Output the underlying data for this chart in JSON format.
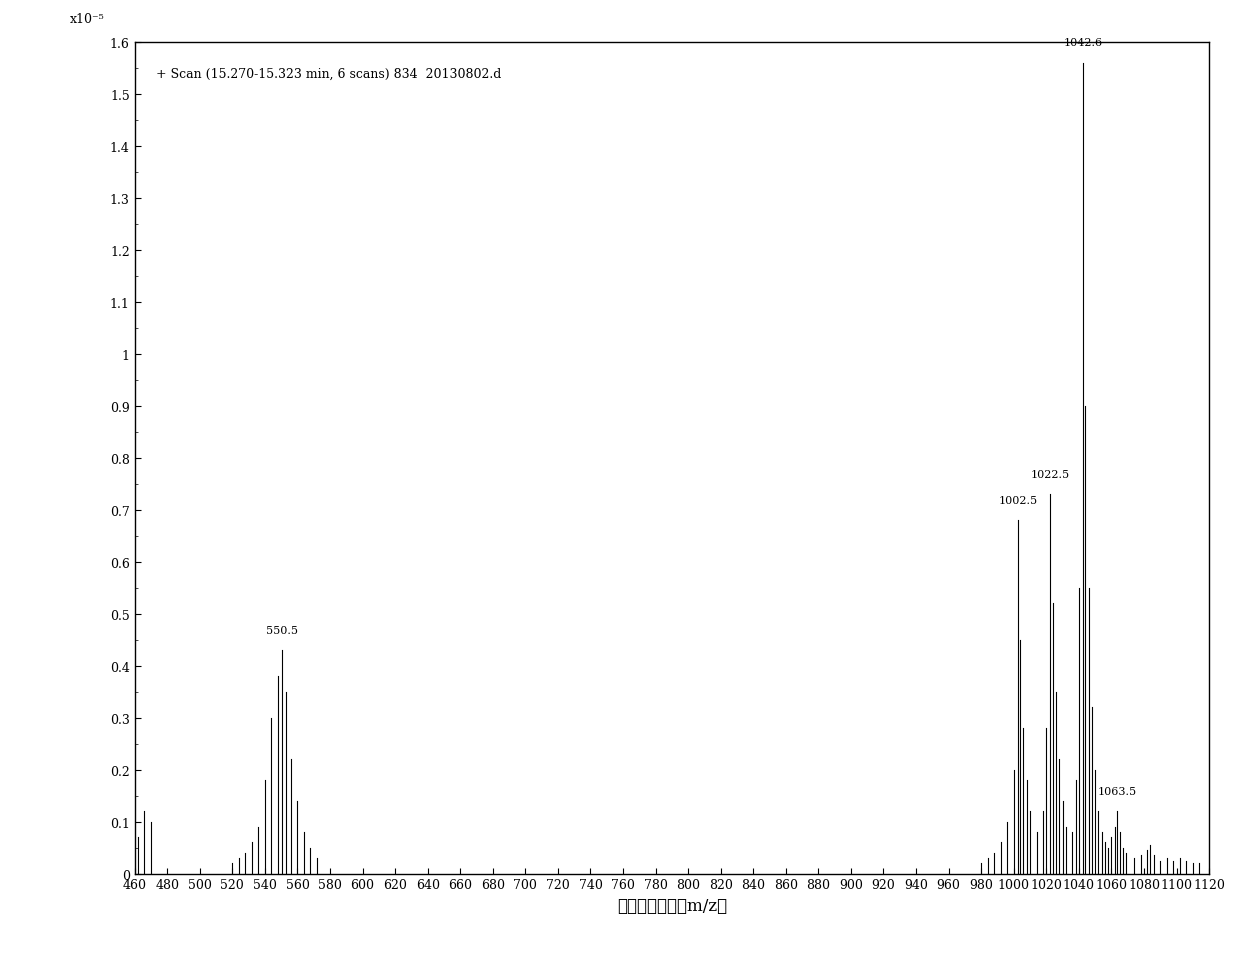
{
  "title_annotation": "+ Scan (15.270-15.323 min, 6 scans) 834  20130802.d",
  "xlabel": "计数和质荷比（m/z）",
  "ylabel_exponent": "x10⁻⁵",
  "xmin": 460,
  "xmax": 1120,
  "ymin": 0,
  "ymax": 1.6,
  "yticks": [
    0,
    0.1,
    0.2,
    0.3,
    0.4,
    0.5,
    0.6,
    0.7,
    0.8,
    0.9,
    1.0,
    1.1,
    1.2,
    1.3,
    1.4,
    1.5,
    1.6
  ],
  "xticks": [
    460,
    480,
    500,
    520,
    540,
    560,
    580,
    600,
    620,
    640,
    660,
    680,
    700,
    720,
    740,
    760,
    780,
    800,
    820,
    840,
    860,
    880,
    900,
    920,
    940,
    960,
    980,
    1000,
    1020,
    1040,
    1060,
    1080,
    1100,
    1120
  ],
  "peaks": [
    {
      "mz": 462,
      "intensity": 0.07,
      "label": null
    },
    {
      "mz": 466,
      "intensity": 0.12,
      "label": null
    },
    {
      "mz": 470,
      "intensity": 0.1,
      "label": null
    },
    {
      "mz": 520,
      "intensity": 0.02,
      "label": null
    },
    {
      "mz": 524,
      "intensity": 0.03,
      "label": null
    },
    {
      "mz": 528,
      "intensity": 0.04,
      "label": null
    },
    {
      "mz": 532,
      "intensity": 0.06,
      "label": null
    },
    {
      "mz": 536,
      "intensity": 0.09,
      "label": null
    },
    {
      "mz": 540,
      "intensity": 0.18,
      "label": null
    },
    {
      "mz": 544,
      "intensity": 0.3,
      "label": null
    },
    {
      "mz": 548,
      "intensity": 0.38,
      "label": null
    },
    {
      "mz": 550.5,
      "intensity": 0.43,
      "label": "550.5"
    },
    {
      "mz": 553,
      "intensity": 0.35,
      "label": null
    },
    {
      "mz": 556,
      "intensity": 0.22,
      "label": null
    },
    {
      "mz": 560,
      "intensity": 0.14,
      "label": null
    },
    {
      "mz": 564,
      "intensity": 0.08,
      "label": null
    },
    {
      "mz": 568,
      "intensity": 0.05,
      "label": null
    },
    {
      "mz": 572,
      "intensity": 0.03,
      "label": null
    },
    {
      "mz": 980,
      "intensity": 0.02,
      "label": null
    },
    {
      "mz": 984,
      "intensity": 0.03,
      "label": null
    },
    {
      "mz": 988,
      "intensity": 0.04,
      "label": null
    },
    {
      "mz": 992,
      "intensity": 0.06,
      "label": null
    },
    {
      "mz": 996,
      "intensity": 0.1,
      "label": null
    },
    {
      "mz": 1000,
      "intensity": 0.2,
      "label": null
    },
    {
      "mz": 1002.5,
      "intensity": 0.68,
      "label": "1002.5"
    },
    {
      "mz": 1004,
      "intensity": 0.45,
      "label": null
    },
    {
      "mz": 1006,
      "intensity": 0.28,
      "label": null
    },
    {
      "mz": 1008,
      "intensity": 0.18,
      "label": null
    },
    {
      "mz": 1010,
      "intensity": 0.12,
      "label": null
    },
    {
      "mz": 1014,
      "intensity": 0.08,
      "label": null
    },
    {
      "mz": 1018,
      "intensity": 0.12,
      "label": null
    },
    {
      "mz": 1020,
      "intensity": 0.28,
      "label": null
    },
    {
      "mz": 1022.5,
      "intensity": 0.73,
      "label": "1022.5"
    },
    {
      "mz": 1024,
      "intensity": 0.52,
      "label": null
    },
    {
      "mz": 1026,
      "intensity": 0.35,
      "label": null
    },
    {
      "mz": 1028,
      "intensity": 0.22,
      "label": null
    },
    {
      "mz": 1030,
      "intensity": 0.14,
      "label": null
    },
    {
      "mz": 1032,
      "intensity": 0.09,
      "label": null
    },
    {
      "mz": 1036,
      "intensity": 0.08,
      "label": null
    },
    {
      "mz": 1038,
      "intensity": 0.18,
      "label": null
    },
    {
      "mz": 1040,
      "intensity": 0.55,
      "label": null
    },
    {
      "mz": 1042.6,
      "intensity": 1.56,
      "label": "1042.6"
    },
    {
      "mz": 1044,
      "intensity": 0.9,
      "label": null
    },
    {
      "mz": 1046,
      "intensity": 0.55,
      "label": null
    },
    {
      "mz": 1048,
      "intensity": 0.32,
      "label": null
    },
    {
      "mz": 1050,
      "intensity": 0.2,
      "label": null
    },
    {
      "mz": 1052,
      "intensity": 0.12,
      "label": null
    },
    {
      "mz": 1054,
      "intensity": 0.08,
      "label": null
    },
    {
      "mz": 1056,
      "intensity": 0.06,
      "label": null
    },
    {
      "mz": 1058,
      "intensity": 0.05,
      "label": null
    },
    {
      "mz": 1060,
      "intensity": 0.07,
      "label": null
    },
    {
      "mz": 1062,
      "intensity": 0.09,
      "label": null
    },
    {
      "mz": 1063.5,
      "intensity": 0.12,
      "label": "1063.5"
    },
    {
      "mz": 1065,
      "intensity": 0.08,
      "label": null
    },
    {
      "mz": 1067,
      "intensity": 0.05,
      "label": null
    },
    {
      "mz": 1069,
      "intensity": 0.04,
      "label": null
    },
    {
      "mz": 1074,
      "intensity": 0.03,
      "label": null
    },
    {
      "mz": 1078,
      "intensity": 0.035,
      "label": null
    },
    {
      "mz": 1082,
      "intensity": 0.045,
      "label": null
    },
    {
      "mz": 1084,
      "intensity": 0.055,
      "label": null
    },
    {
      "mz": 1086,
      "intensity": 0.035,
      "label": null
    },
    {
      "mz": 1090,
      "intensity": 0.025,
      "label": null
    },
    {
      "mz": 1094,
      "intensity": 0.03,
      "label": null
    },
    {
      "mz": 1098,
      "intensity": 0.025,
      "label": null
    },
    {
      "mz": 1102,
      "intensity": 0.03,
      "label": null
    },
    {
      "mz": 1106,
      "intensity": 0.025,
      "label": null
    },
    {
      "mz": 1110,
      "intensity": 0.02,
      "label": null
    },
    {
      "mz": 1114,
      "intensity": 0.02,
      "label": null
    }
  ],
  "line_color": "#000000",
  "background_color": "#ffffff",
  "font_size_ticks": 9,
  "font_size_label": 12,
  "font_size_annotation": 8,
  "font_size_title": 9
}
